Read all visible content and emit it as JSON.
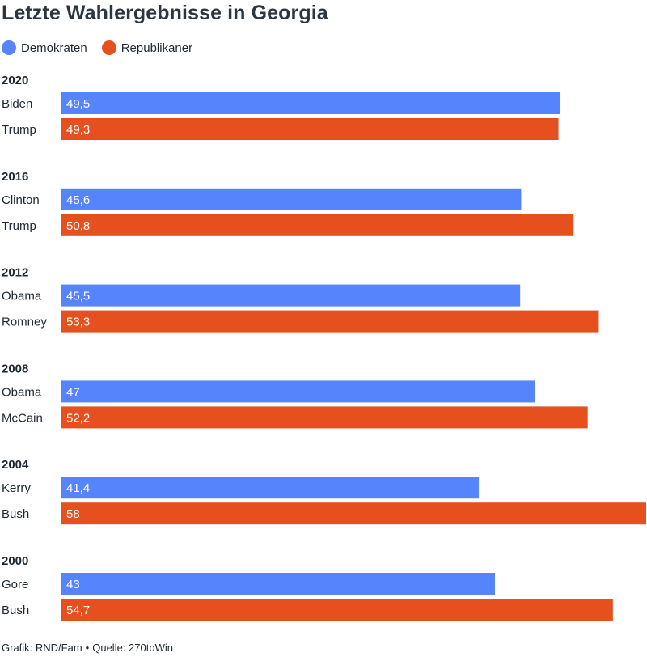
{
  "title": "Letzte Wahlergebnisse in Georgia",
  "legend": [
    {
      "label": "Demokraten",
      "color": "#5584fc"
    },
    {
      "label": "Republikaner",
      "color": "#e6501e"
    }
  ],
  "footer": {
    "credit": "Grafik: RND/Fam",
    "separator": "•",
    "source": "Quelle: 270toWin"
  },
  "chart_data": {
    "type": "bar",
    "orientation": "horizontal",
    "title": "Letzte Wahlergebnisse in Georgia",
    "xlim": [
      0,
      58
    ],
    "grid": false,
    "legend_position": "top-left",
    "series_colors": {
      "Demokraten": "#5584fc",
      "Republikaner": "#e6501e"
    },
    "groups": [
      {
        "year": "2020",
        "bars": [
          {
            "candidate": "Biden",
            "party": "Demokraten",
            "value": 49.5,
            "label": "49,5"
          },
          {
            "candidate": "Trump",
            "party": "Republikaner",
            "value": 49.3,
            "label": "49,3"
          }
        ]
      },
      {
        "year": "2016",
        "bars": [
          {
            "candidate": "Clinton",
            "party": "Demokraten",
            "value": 45.6,
            "label": "45,6"
          },
          {
            "candidate": "Trump",
            "party": "Republikaner",
            "value": 50.8,
            "label": "50,8"
          }
        ]
      },
      {
        "year": "2012",
        "bars": [
          {
            "candidate": "Obama",
            "party": "Demokraten",
            "value": 45.5,
            "label": "45,5"
          },
          {
            "candidate": "Romney",
            "party": "Republikaner",
            "value": 53.3,
            "label": "53,3"
          }
        ]
      },
      {
        "year": "2008",
        "bars": [
          {
            "candidate": "Obama",
            "party": "Demokraten",
            "value": 47,
            "label": "47"
          },
          {
            "candidate": "McCain",
            "party": "Republikaner",
            "value": 52.2,
            "label": "52,2"
          }
        ]
      },
      {
        "year": "2004",
        "bars": [
          {
            "candidate": "Kerry",
            "party": "Demokraten",
            "value": 41.4,
            "label": "41,4"
          },
          {
            "candidate": "Bush",
            "party": "Republikaner",
            "value": 58,
            "label": "58"
          }
        ]
      },
      {
        "year": "2000",
        "bars": [
          {
            "candidate": "Gore",
            "party": "Demokraten",
            "value": 43,
            "label": "43"
          },
          {
            "candidate": "Bush",
            "party": "Republikaner",
            "value": 54.7,
            "label": "54,7"
          }
        ]
      }
    ]
  }
}
